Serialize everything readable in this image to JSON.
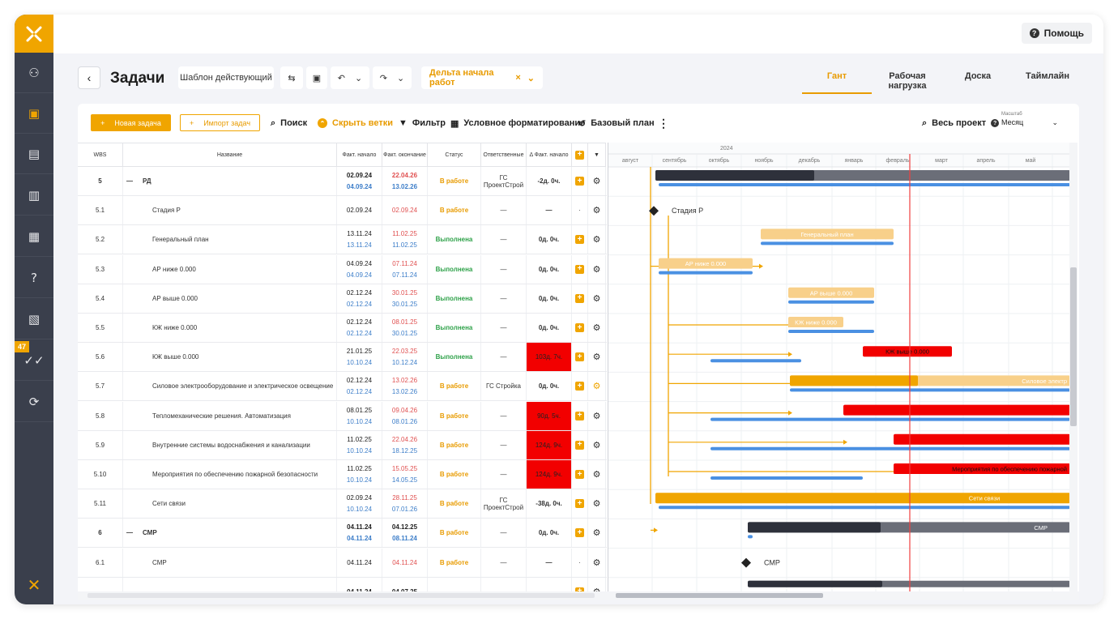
{
  "topbar": {
    "help_label": "Помощь"
  },
  "sidebar": {
    "badge": "47"
  },
  "header": {
    "title": "Задачи",
    "template_label": "Шаблон действующий",
    "delta_chip": "Дельта начала работ",
    "delta_chip_close": "×",
    "tabs": [
      "Гант",
      "Рабочая нагрузка",
      "Доска",
      "Таймлайн"
    ]
  },
  "toolbar": {
    "new_task": "Новая задача",
    "import_tasks": "Импорт задач",
    "search": "Поиск",
    "hide_branches": "Скрыть ветки",
    "filter": "Фильтр",
    "cond_format": "Условное форматирование",
    "baseline": "Базовый план",
    "whole_project": "Весь проект",
    "scale_label": "Масштаб",
    "scale_value": "Месяц"
  },
  "columns": [
    "WBS",
    "Название",
    "Факт. начало",
    "Факт. окончание",
    "Статус",
    "Ответственные",
    "Δ Факт. начало"
  ],
  "gantt_header": {
    "year": "2024",
    "months": [
      "август",
      "сентябрь",
      "октябрь",
      "ноябрь",
      "декабрь",
      "январь",
      "февраль",
      "март",
      "апрель",
      "май"
    ]
  },
  "rows": [
    {
      "wbs": "5",
      "collapse": "—",
      "name": "РД",
      "start": "02.09.24",
      "start2": "04.09.24",
      "end": "22.04.26",
      "end2": "13.02.26",
      "status": "В работе",
      "st": "work",
      "resp": "ГС ПроектСтрой",
      "delta": "-2д. 0ч.",
      "bold": true,
      "plus": true,
      "gantt_label": ""
    },
    {
      "wbs": "5.1",
      "name": "Стадия Р",
      "start": "02.09.24",
      "end": "02.09.24",
      "status": "В работе",
      "st": "work",
      "resp": "—",
      "delta": "—",
      "plus": false,
      "gantt_label": "Стадия Р"
    },
    {
      "wbs": "5.2",
      "name": "Генеральный план",
      "start": "13.11.24",
      "start2": "13.11.24",
      "end": "11.02.25",
      "end2": "11.02.25",
      "status": "Выполнена",
      "st": "done",
      "resp": "—",
      "delta": "0д. 0ч.",
      "plus": true,
      "gantt_label": "Генеральный план"
    },
    {
      "wbs": "5.3",
      "name": "АР ниже 0.000",
      "start": "04.09.24",
      "start2": "04.09.24",
      "end": "07.11.24",
      "end2": "07.11.24",
      "status": "Выполнена",
      "st": "done",
      "resp": "—",
      "delta": "0д. 0ч.",
      "plus": true,
      "gantt_label": "АР ниже 0.000"
    },
    {
      "wbs": "5.4",
      "name": "АР выше 0.000",
      "start": "02.12.24",
      "start2": "02.12.24",
      "end": "30.01.25",
      "end2": "30.01.25",
      "status": "Выполнена",
      "st": "done",
      "resp": "—",
      "delta": "0д. 0ч.",
      "plus": true,
      "gantt_label": "АР выше 0.000"
    },
    {
      "wbs": "5.5",
      "name": "КЖ ниже 0.000",
      "start": "02.12.24",
      "start2": "02.12.24",
      "end": "08.01.25",
      "end2": "30.01.25",
      "status": "Выполнена",
      "st": "done",
      "resp": "—",
      "delta": "0д. 0ч.",
      "plus": true,
      "gantt_label": "КЖ ниже 0.000"
    },
    {
      "wbs": "5.6",
      "name": "КЖ выше 0.000",
      "start": "21.01.25",
      "start2": "10.10.24",
      "end": "22.03.25",
      "end2": "10.12.24",
      "status": "Выполнена",
      "st": "done",
      "resp": "—",
      "delta": "103д. 7ч.",
      "delta_red": true,
      "plus": true,
      "gantt_label": "КЖ выше 0.000"
    },
    {
      "wbs": "5.7",
      "name": "Силовое электрооборудование и электрическое освещение",
      "start": "02.12.24",
      "start2": "02.12.24",
      "end": "13.02.26",
      "end2": "13.02.26",
      "status": "В работе",
      "st": "work",
      "resp": "ГС Стройка",
      "delta": "0д. 0ч.",
      "plus": true,
      "gear_orange": true,
      "gantt_label": "Силовое электр"
    },
    {
      "wbs": "5.8",
      "name": "Тепломеханические решения. Автоматизация",
      "start": "08.01.25",
      "start2": "10.10.24",
      "end": "09.04.26",
      "end2": "08.01.26",
      "status": "В работе",
      "st": "work",
      "resp": "—",
      "delta": "90д. 5ч.",
      "delta_red": true,
      "plus": true,
      "gantt_label": ""
    },
    {
      "wbs": "5.9",
      "name": "Внутренние системы водоснабжения и канализации",
      "start": "11.02.25",
      "start2": "10.10.24",
      "end": "22.04.26",
      "end2": "18.12.25",
      "status": "В работе",
      "st": "work",
      "resp": "—",
      "delta": "124д. 9ч.",
      "delta_red": true,
      "plus": true,
      "gantt_label": ""
    },
    {
      "wbs": "5.10",
      "name": "Мероприятия по обеспечению пожарной безопасности",
      "start": "11.02.25",
      "start2": "10.10.24",
      "end": "15.05.25",
      "end2": "14.05.25",
      "status": "В работе",
      "st": "work",
      "resp": "—",
      "delta": "124д. 9ч.",
      "delta_red": true,
      "plus": true,
      "gantt_label": "Мероприятия по обеспечению пожарной"
    },
    {
      "wbs": "5.11",
      "name": "Сети связи",
      "start": "02.09.24",
      "start2": "10.10.24",
      "end": "28.11.25",
      "end2": "07.01.26",
      "status": "В работе",
      "st": "work",
      "resp": "ГС ПроектСтрой",
      "delta": "-38д. 0ч.",
      "plus": true,
      "gantt_label": "Сети связи"
    },
    {
      "wbs": "6",
      "collapse": "—",
      "name": "СМР",
      "start": "04.11.24",
      "start2": "04.11.24",
      "end": "04.12.25",
      "end2": "08.11.24",
      "status": "В работе",
      "st": "work",
      "resp": "—",
      "delta": "0д. 0ч.",
      "bold": true,
      "plus": true,
      "gantt_label": "СМР"
    },
    {
      "wbs": "6.1",
      "name": "СМР",
      "start": "04.11.24",
      "end": "04.11.24",
      "status": "В работе",
      "st": "work",
      "resp": "—",
      "delta": "—",
      "plus": false,
      "gantt_label": "СМР"
    },
    {
      "wbs": "",
      "name": "",
      "start": "04.11.24",
      "end": "04.07.25",
      "status": "",
      "st": "",
      "resp": "",
      "delta": "",
      "bold": true,
      "plus": true,
      "gantt_label": ""
    }
  ],
  "colors": {
    "accent": "#f0a500",
    "sidebar": "#3a3f4c",
    "red": "#f20000",
    "blue_plan": "#4a90e2",
    "dark_bar": "#2e313b"
  }
}
